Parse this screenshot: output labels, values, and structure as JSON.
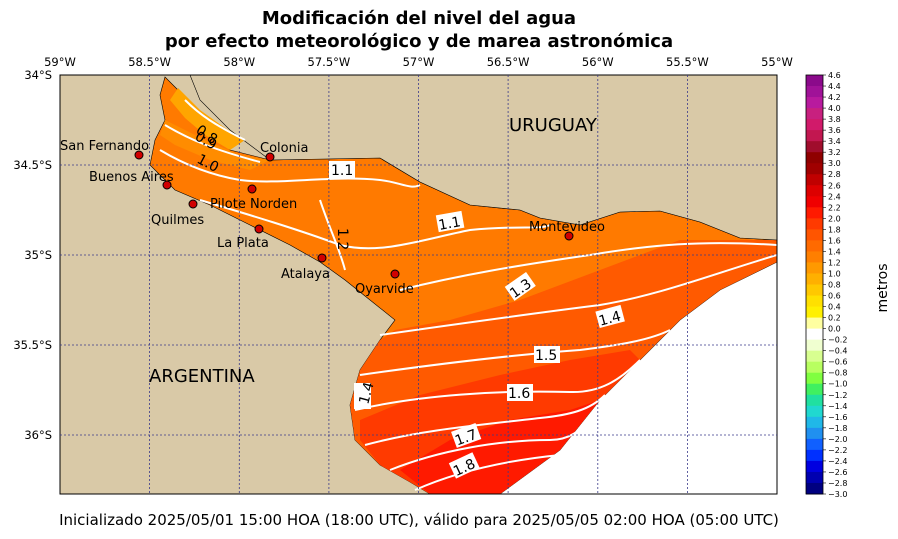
{
  "title": {
    "line1": "Modificación del nivel del agua",
    "line2": "por efecto meteorológico y de marea astronómica"
  },
  "lon_ticks": [
    "59°W",
    "58.5°W",
    "58°W",
    "57.5°W",
    "57°W",
    "56.5°W",
    "56°W",
    "55.5°W",
    "55°W"
  ],
  "lat_ticks": [
    "34°S",
    "34.5°S",
    "35°S",
    "35.5°S",
    "36°S"
  ],
  "countries": {
    "uruguay": "URUGUAY",
    "argentina": "ARGENTINA"
  },
  "stations": [
    {
      "name": "San Fernando",
      "lon": -58.56,
      "lat": -34.44
    },
    {
      "name": "Buenos Aires",
      "lon": -58.4,
      "lat": -34.6
    },
    {
      "name": "Pilote Norden",
      "lon": -57.92,
      "lat": -34.63
    },
    {
      "name": "Colonia",
      "lon": -57.83,
      "lat": -34.45
    },
    {
      "name": "Quilmes",
      "lon": -58.26,
      "lat": -34.71
    },
    {
      "name": "La Plata",
      "lon": -57.89,
      "lat": -34.85
    },
    {
      "name": "Atalaya",
      "lon": -57.54,
      "lat": -35.02
    },
    {
      "name": "Oyarvide",
      "lon": -57.13,
      "lat": -35.1
    },
    {
      "name": "Montevideo",
      "lon": -56.16,
      "lat": -34.9
    }
  ],
  "contour_labels": [
    "0.8",
    "0.9",
    "1.0",
    "1.1",
    "1.1",
    "1.2",
    "1.3",
    "1.4",
    "1.4",
    "1.5",
    "1.6",
    "1.7",
    "1.8"
  ],
  "colorbar": {
    "label": "metros",
    "ticks": [
      "4.6",
      "4.4",
      "4.2",
      "4.0",
      "3.8",
      "3.6",
      "3.4",
      "3.2",
      "3.0",
      "2.8",
      "2.6",
      "2.4",
      "2.2",
      "2.0",
      "1.8",
      "1.6",
      "1.4",
      "1.2",
      "1.0",
      "0.8",
      "0.6",
      "0.4",
      "0.2",
      "0.0",
      "−0.2",
      "−0.4",
      "−0.6",
      "−0.8",
      "−1.0",
      "−1.2",
      "−1.4",
      "−1.6",
      "−1.8",
      "−2.0",
      "−2.2",
      "−2.4",
      "−2.6",
      "−2.8",
      "−3.0"
    ],
    "colors": [
      "#8b0a8b",
      "#a01298",
      "#b81a9e",
      "#c8207f",
      "#d11a6a",
      "#c21750",
      "#a00d2c",
      "#8f0000",
      "#a00000",
      "#c00000",
      "#dd0000",
      "#f00000",
      "#ff1a00",
      "#ff3a00",
      "#ff5500",
      "#ff6a00",
      "#ff7f00",
      "#ff9900",
      "#ffb000",
      "#ffc800",
      "#ffe000",
      "#fff000",
      "#ffffa0",
      "#ffffff",
      "#f0ffd0",
      "#d8ff90",
      "#b8ff60",
      "#80ff40",
      "#40f060",
      "#20e0a0",
      "#20d8d0",
      "#20b8e8",
      "#2090f0",
      "#1060ff",
      "#0030ff",
      "#0000e0",
      "#0000b0",
      "#000080"
    ]
  },
  "footer": "Inicializado 2025/05/01 15:00 HOA (18:00 UTC), válido para 2025/05/05 02:00 HOA (05:00 UTC)"
}
